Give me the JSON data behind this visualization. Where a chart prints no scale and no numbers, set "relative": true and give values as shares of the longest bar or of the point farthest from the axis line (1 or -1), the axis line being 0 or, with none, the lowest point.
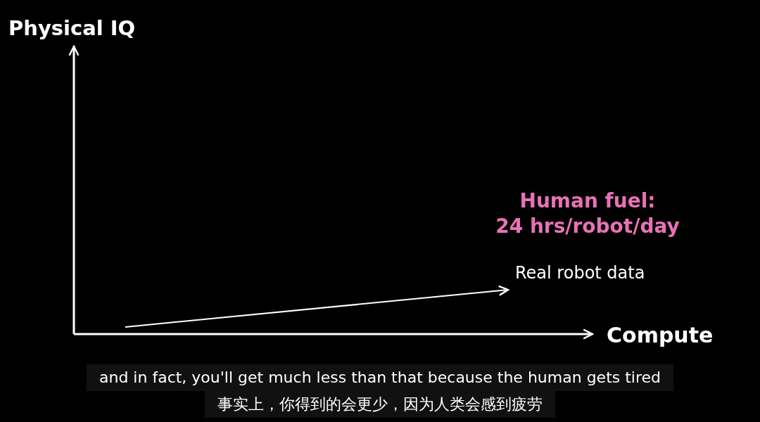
{
  "chart_data": {
    "type": "line",
    "relative": true,
    "xlabel": "Compute",
    "title": "Physical IQ",
    "categories": [
      null,
      null
    ],
    "series": [
      {
        "name": "Real robot data",
        "color": "#ffffff",
        "values": [
          0.16,
          1
        ]
      }
    ],
    "annotations": [
      "Human fuel:\n24 hrs/robot/day",
      "and in fact, you'll get much less than that because the human gets tired",
      "事实上，你得到的会更少，因为人类会感到疲劳"
    ]
  }
}
